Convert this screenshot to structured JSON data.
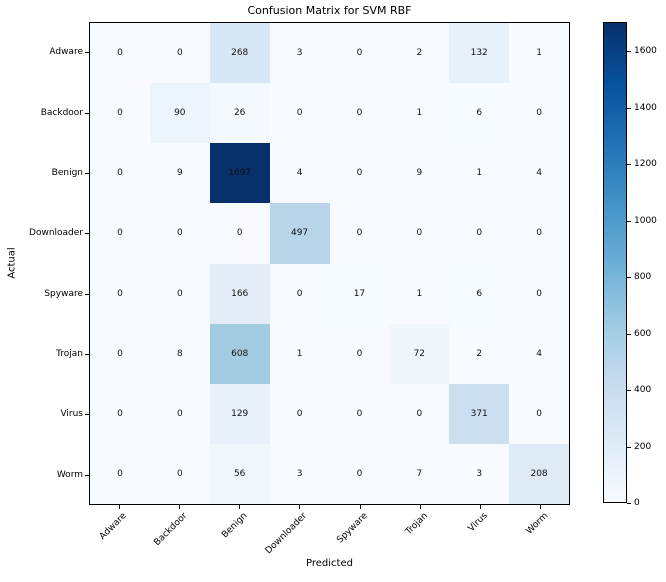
{
  "title": "Confusion Matrix for SVM RBF",
  "chart_data": {
    "type": "heatmap",
    "title": "Confusion Matrix for SVM RBF",
    "xlabel": "Predicted",
    "ylabel": "Actual",
    "x_categories": [
      "Adware",
      "Backdoor",
      "Benign",
      "Downloader",
      "Spyware",
      "Trojan",
      "Virus",
      "Worm"
    ],
    "y_categories": [
      "Adware",
      "Backdoor",
      "Benign",
      "Downloader",
      "Spyware",
      "Trojan",
      "Virus",
      "Worm"
    ],
    "matrix": [
      [
        0,
        0,
        268,
        3,
        0,
        2,
        132,
        1
      ],
      [
        0,
        90,
        26,
        0,
        0,
        1,
        6,
        0
      ],
      [
        0,
        9,
        1697,
        4,
        0,
        9,
        1,
        4
      ],
      [
        0,
        0,
        0,
        497,
        0,
        0,
        0,
        0
      ],
      [
        0,
        0,
        166,
        0,
        17,
        1,
        6,
        0
      ],
      [
        0,
        8,
        608,
        1,
        0,
        72,
        2,
        4
      ],
      [
        0,
        0,
        129,
        0,
        0,
        0,
        371,
        0
      ],
      [
        0,
        0,
        56,
        3,
        0,
        7,
        3,
        208
      ]
    ],
    "colormap": "Blues",
    "vmin": 0,
    "vmax": 1697,
    "grid": false,
    "legend_position": "right-colorbar",
    "colorbar_ticks": [
      0,
      200,
      400,
      600,
      800,
      1000,
      1200,
      1400,
      1600
    ],
    "colormap_anchors": [
      {
        "pos": 0.0,
        "color": "#f7fbff"
      },
      {
        "pos": 0.125,
        "color": "#deebf7"
      },
      {
        "pos": 0.25,
        "color": "#c6dbef"
      },
      {
        "pos": 0.375,
        "color": "#9ecae1"
      },
      {
        "pos": 0.5,
        "color": "#6baed6"
      },
      {
        "pos": 0.625,
        "color": "#4292c6"
      },
      {
        "pos": 0.75,
        "color": "#2171b5"
      },
      {
        "pos": 0.875,
        "color": "#08519c"
      },
      {
        "pos": 1.0,
        "color": "#08306b"
      }
    ],
    "cell_text_color": "#111111",
    "axis_color": "#000000"
  }
}
